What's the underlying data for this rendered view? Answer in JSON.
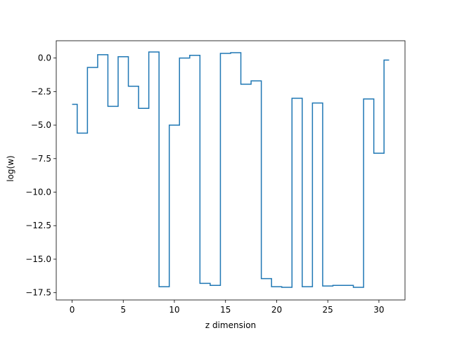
{
  "chart_data": {
    "type": "line",
    "drawstyle": "steps-mid",
    "xlabel": "z dimension",
    "ylabel": "log(w)",
    "xlim": [
      -1.55,
      32.55
    ],
    "ylim": [
      -18.04,
      1.29
    ],
    "xticks": [
      0,
      5,
      10,
      15,
      20,
      25,
      30
    ],
    "xtick_labels": [
      "0",
      "5",
      "10",
      "15",
      "20",
      "25",
      "30"
    ],
    "yticks": [
      0.0,
      -2.5,
      -5.0,
      -7.5,
      -10.0,
      -12.5,
      -15.0,
      -17.5
    ],
    "ytick_labels": [
      "0.0",
      "−2.5",
      "−5.0",
      "−7.5",
      "−10.0",
      "−12.5",
      "−15.0",
      "−17.5"
    ],
    "grid": false,
    "legend": "none",
    "series": [
      {
        "color": "#1f77b4",
        "x": [
          0,
          1,
          2,
          3,
          4,
          5,
          6,
          7,
          8,
          9,
          10,
          11,
          12,
          13,
          14,
          15,
          16,
          17,
          18,
          19,
          20,
          21,
          22,
          23,
          24,
          25,
          26,
          27,
          28,
          29,
          30,
          31
        ],
        "y": [
          -3.45,
          -5.6,
          -0.7,
          0.25,
          -3.6,
          0.1,
          -2.1,
          -3.75,
          0.45,
          -17.05,
          -5.0,
          0.0,
          0.2,
          -16.8,
          -16.95,
          0.35,
          0.4,
          -1.95,
          -1.7,
          -16.45,
          -17.05,
          -17.1,
          -3.0,
          -17.05,
          -3.35,
          -17.0,
          -16.95,
          -16.95,
          -17.1,
          -3.05,
          -7.1,
          -0.15
        ]
      }
    ]
  }
}
